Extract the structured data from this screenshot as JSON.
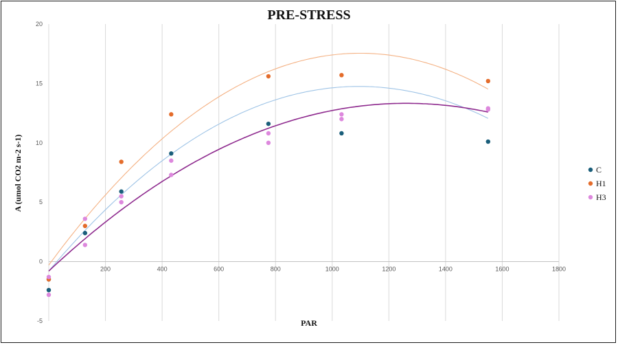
{
  "chart_data": {
    "type": "scatter",
    "title": "PRE-STRESS",
    "xlabel": "PAR",
    "ylabel": "A (umol CO2 m-2 s-1)",
    "xlim": [
      0,
      1800
    ],
    "ylim": [
      -5,
      20
    ],
    "xticks": [
      200,
      400,
      600,
      800,
      1000,
      1200,
      1400,
      1600,
      1800
    ],
    "yticks": [
      -5,
      0,
      5,
      10,
      15,
      20
    ],
    "grid": "vertical",
    "legend_position": "right",
    "trendline": "polynomial (order 2)",
    "series": [
      {
        "name": "C",
        "color": "#1a5e7a",
        "trend_color": "#9dc3e6",
        "points": [
          [
            0,
            -2.4
          ],
          [
            0,
            -1.5
          ],
          [
            128,
            2.4
          ],
          [
            256,
            5.9
          ],
          [
            432,
            9.1
          ],
          [
            775,
            11.6
          ],
          [
            1033,
            10.8
          ],
          [
            1550,
            10.1
          ]
        ],
        "trend": [
          0,
          -0.8,
          0.0284,
          -1.297e-05
        ]
      },
      {
        "name": "H1",
        "color": "#e46c2b",
        "trend_color": "#f4b183",
        "points": [
          [
            0,
            -1.5
          ],
          [
            128,
            3.0
          ],
          [
            256,
            8.4
          ],
          [
            432,
            12.4
          ],
          [
            775,
            15.6
          ],
          [
            1033,
            15.7
          ],
          [
            1550,
            15.2
          ]
        ],
        "trend": [
          0,
          -0.3,
          0.0325,
          -1.48e-05
        ]
      },
      {
        "name": "H3",
        "color": "#dd88dd",
        "trend_color": "#8e2a8e",
        "points": [
          [
            0,
            -2.8
          ],
          [
            0,
            -1.3
          ],
          [
            128,
            3.6
          ],
          [
            128,
            1.4
          ],
          [
            256,
            5.5
          ],
          [
            256,
            5.0
          ],
          [
            432,
            8.5
          ],
          [
            432,
            7.3
          ],
          [
            775,
            10.8
          ],
          [
            775,
            10.0
          ],
          [
            1033,
            12.4
          ],
          [
            1033,
            12.0
          ],
          [
            1550,
            12.9
          ],
          [
            1550,
            12.8
          ]
        ],
        "trend": [
          0,
          -0.8,
          0.0224,
          -8.88e-06
        ]
      }
    ]
  }
}
